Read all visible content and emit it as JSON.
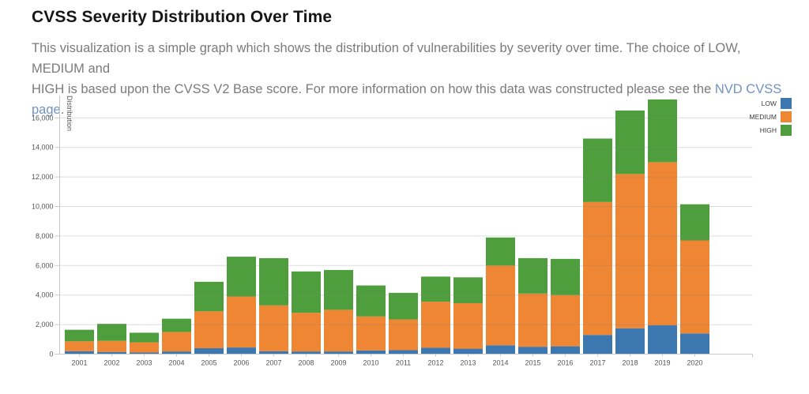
{
  "header": {
    "title": "CVSS Severity Distribution Over Time",
    "description_line1": "This visualization is a simple graph which shows the distribution of vulnerabilities by severity over time. The choice of LOW, MEDIUM and",
    "description_line2_pre_link": "HIGH is based upon the CVSS V2 Base score. For more information on how this data was constructed please see the ",
    "link_text": "NVD CVSS page",
    "description_after_link": "."
  },
  "colors": {
    "low": "#3c77b0",
    "medium": "#ef8633",
    "high": "#4f9e3e",
    "link": "#7092c4",
    "grid_line": "#808080",
    "axis_line": "#c9c9c9",
    "tick_label": "#555555"
  },
  "chart_data": {
    "type": "bar",
    "stacked": true,
    "title": "",
    "xlabel": "",
    "ylabel": "Distribution",
    "grid": "horizontal",
    "legend_position": "top-right",
    "ylim": [
      0,
      17400
    ],
    "yticks": [
      0,
      2000,
      4000,
      6000,
      8000,
      10000,
      12000,
      14000,
      16000
    ],
    "categories": [
      "2001",
      "2002",
      "2003",
      "2004",
      "2005",
      "2006",
      "2007",
      "2008",
      "2009",
      "2010",
      "2011",
      "2012",
      "2013",
      "2014",
      "2015",
      "2016",
      "2017",
      "2018",
      "2019",
      "2020"
    ],
    "series": [
      {
        "name": "LOW",
        "color": "#3c77b0",
        "values": [
          200,
          150,
          110,
          180,
          400,
          450,
          200,
          180,
          180,
          250,
          270,
          430,
          370,
          600,
          500,
          530,
          1300,
          1750,
          1950,
          1400
        ]
      },
      {
        "name": "MEDIUM",
        "color": "#ef8633",
        "values": [
          670,
          750,
          690,
          1320,
          2500,
          3450,
          3100,
          2620,
          2820,
          2300,
          2080,
          3120,
          3080,
          5400,
          3600,
          3470,
          9000,
          10450,
          11050,
          6300
        ]
      },
      {
        "name": "HIGH",
        "color": "#4f9e3e",
        "values": [
          780,
          1150,
          650,
          900,
          2000,
          2700,
          3200,
          2800,
          2700,
          2100,
          1800,
          1700,
          1750,
          1900,
          2400,
          2450,
          4300,
          4300,
          4250,
          2450
        ]
      }
    ],
    "totals": [
      1650,
      2050,
      1450,
      2400,
      4900,
      6600,
      6500,
      5600,
      5700,
      4650,
      4150,
      5250,
      5200,
      7900,
      6500,
      6450,
      14600,
      16500,
      17250,
      10150
    ]
  }
}
